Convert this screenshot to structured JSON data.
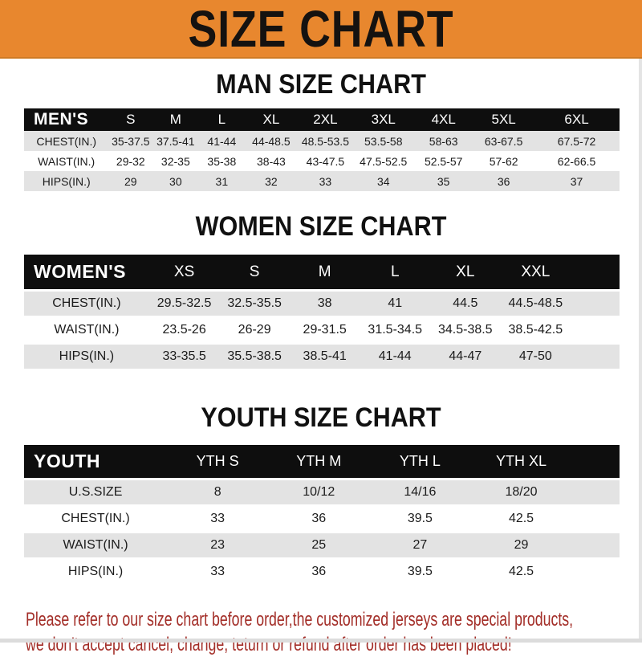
{
  "banner": {
    "title": "SIZE CHART"
  },
  "colors": {
    "banner_bg": "#E8872E",
    "header_bar": "#0E0E0E",
    "row_shade": "#E3E3E3",
    "disclaimer_text": "#A32E28"
  },
  "sections": [
    {
      "id": "men",
      "heading": "MAN SIZE CHART",
      "table": {
        "label": "MEN'S",
        "columns": [
          "S",
          "M",
          "L",
          "XL",
          "2XL",
          "3XL",
          "4XL",
          "5XL",
          "6XL"
        ],
        "rows": [
          {
            "label": "CHEST(IN.)",
            "values": [
              "35-37.5",
              "37.5-41",
              "41-44",
              "44-48.5",
              "48.5-53.5",
              "53.5-58",
              "58-63",
              "63-67.5",
              "67.5-72"
            ]
          },
          {
            "label": "WAIST(IN.)",
            "values": [
              "29-32",
              "32-35",
              "35-38",
              "38-43",
              "43-47.5",
              "47.5-52.5",
              "52.5-57",
              "57-62",
              "62-66.5"
            ]
          },
          {
            "label": "HIPS(IN.)",
            "values": [
              "29",
              "30",
              "31",
              "32",
              "33",
              "34",
              "35",
              "36",
              "37"
            ]
          }
        ]
      }
    },
    {
      "id": "women",
      "heading": "WOMEN SIZE CHART",
      "table": {
        "label": "WOMEN'S",
        "columns": [
          "XS",
          "S",
          "M",
          "L",
          "XL",
          "XXL"
        ],
        "rows": [
          {
            "label": "CHEST(IN.)",
            "values": [
              "29.5-32.5",
              "32.5-35.5",
              "38",
              "41",
              "44.5",
              "44.5-48.5"
            ]
          },
          {
            "label": "WAIST(IN.)",
            "values": [
              "23.5-26",
              "26-29",
              "29-31.5",
              "31.5-34.5",
              "34.5-38.5",
              "38.5-42.5"
            ]
          },
          {
            "label": "HIPS(IN.)",
            "values": [
              "33-35.5",
              "35.5-38.5",
              "38.5-41",
              "41-44",
              "44-47",
              "47-50"
            ]
          }
        ]
      }
    },
    {
      "id": "youth",
      "heading": "YOUTH SIZE CHART",
      "table": {
        "label": "YOUTH",
        "columns": [
          "YTH S",
          "YTH M",
          "YTH L",
          "YTH XL"
        ],
        "rows": [
          {
            "label": "U.S.SIZE",
            "values": [
              "8",
              "10/12",
              "14/16",
              "18/20"
            ]
          },
          {
            "label": "CHEST(IN.)",
            "values": [
              "33",
              "36",
              "39.5",
              "42.5"
            ]
          },
          {
            "label": "WAIST(IN.)",
            "values": [
              "23",
              "25",
              "27",
              "29"
            ]
          },
          {
            "label": "HIPS(IN.)",
            "values": [
              "33",
              "36",
              "39.5",
              "42.5"
            ]
          }
        ]
      }
    }
  ],
  "disclaimer": {
    "line1": "Please refer to our size chart before order,the customized jerseys are special products,",
    "line2": "we don't accept cancel, change, teturn or refund after order has been placed!"
  }
}
